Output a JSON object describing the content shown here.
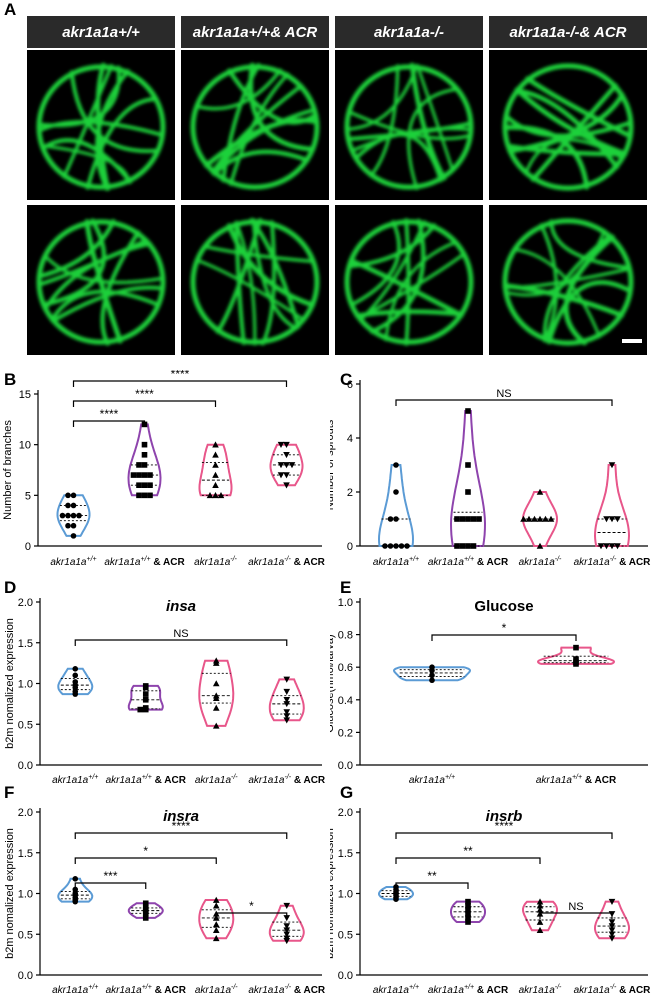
{
  "panel_letters": {
    "A": "A",
    "B": "B",
    "C": "C",
    "D": "D",
    "E": "E",
    "F": "F",
    "G": "G"
  },
  "panel_a": {
    "headers": [
      "akr1a1a+/+",
      "akr1a1a+/+& ACR",
      "akr1a1a-/-",
      "akr1a1a-/-& ACR"
    ],
    "image_color": "#1fd13a",
    "image_description_icon": "vessel-micrograph"
  },
  "colors": {
    "wt": "#5b9bd5",
    "wt_acr": "#8e44ad",
    "ko": "#e8568a",
    "ko_acr": "#e8568a"
  },
  "chart_data": [
    {
      "panel": "B",
      "type": "violin",
      "ylabel": "Number of branches",
      "ylim": [
        0,
        15
      ],
      "yticks": [
        0,
        5,
        10,
        15
      ],
      "categories": [
        "akr1a1a+/+",
        "akr1a1a+/+ & ACR",
        "akr1a1a-/-",
        "akr1a1a-/- & ACR"
      ],
      "series": [
        {
          "values": [
            5,
            5,
            4,
            4,
            3,
            3,
            3,
            3,
            2,
            2,
            1
          ],
          "color": "#5b9bd5"
        },
        {
          "values": [
            12,
            10,
            9,
            8,
            8,
            7,
            7,
            7,
            7,
            6,
            6,
            6,
            5,
            5,
            5
          ],
          "color": "#8e44ad"
        },
        {
          "values": [
            10,
            9,
            8,
            7,
            6,
            5,
            5,
            5
          ],
          "color": "#e8568a"
        },
        {
          "values": [
            10,
            10,
            9,
            8,
            8,
            8,
            7,
            7,
            6
          ],
          "color": "#e8568a"
        }
      ],
      "significance": [
        {
          "label": "****"
        },
        {
          "label": "****"
        },
        {
          "label": "****"
        }
      ]
    },
    {
      "panel": "C",
      "type": "violin",
      "ylabel": "Number of sprouts",
      "ylim": [
        0,
        6
      ],
      "yticks": [
        0,
        2,
        4,
        6
      ],
      "categories": [
        "akr1a1a+/+",
        "akr1a1a+/+ & ACR",
        "akr1a1a-/-",
        "akr1a1a-/- & ACR"
      ],
      "series": [
        {
          "values": [
            3,
            2,
            1,
            1,
            0,
            0,
            0,
            0,
            0
          ],
          "color": "#5b9bd5"
        },
        {
          "values": [
            5,
            3,
            2,
            1,
            1,
            1,
            1,
            1,
            0,
            0,
            0,
            0
          ],
          "color": "#8e44ad"
        },
        {
          "values": [
            2,
            1,
            1,
            1,
            1,
            1,
            1,
            0
          ],
          "color": "#e8568a"
        },
        {
          "values": [
            3,
            1,
            1,
            1,
            0,
            0,
            0,
            0
          ],
          "color": "#e8568a"
        }
      ],
      "significance": [
        {
          "label": "NS"
        }
      ]
    },
    {
      "panel": "D",
      "type": "violin",
      "title": "insa",
      "ylabel": "b2m nomalized expression",
      "ylim": [
        0,
        2.0
      ],
      "yticks": [
        "0.0",
        "0.5",
        "1.0",
        "1.5",
        "2.0"
      ],
      "categories": [
        "akr1a1a+/+",
        "akr1a1a+/+ & ACR",
        "akr1a1a-/-",
        "akr1a1a-/- & ACR"
      ],
      "series": [
        {
          "values": [
            1.18,
            1.1,
            1.02,
            0.98,
            0.95,
            0.9,
            0.87
          ],
          "color": "#5b9bd5"
        },
        {
          "values": [
            0.97,
            0.95,
            0.87,
            0.8,
            0.7,
            0.68,
            0.68
          ],
          "color": "#8e44ad"
        },
        {
          "values": [
            1.28,
            1.25,
            1.0,
            0.85,
            0.82,
            0.7,
            0.48
          ],
          "color": "#e8568a"
        },
        {
          "values": [
            1.05,
            0.9,
            0.8,
            0.75,
            0.65,
            0.6,
            0.55
          ],
          "color": "#e8568a"
        }
      ],
      "significance": [
        {
          "label": "NS"
        }
      ]
    },
    {
      "panel": "E",
      "type": "violin",
      "title": "Glucose",
      "ylabel": "Glucose(nmol/larva)",
      "ylim": [
        0,
        1.0
      ],
      "yticks": [
        "0.0",
        "0.2",
        "0.4",
        "0.6",
        "0.8",
        "1.0"
      ],
      "categories": [
        "akr1a1a+/+",
        "akr1a1a+/+ & ACR"
      ],
      "series": [
        {
          "values": [
            0.6,
            0.58,
            0.55,
            0.52
          ],
          "color": "#5b9bd5"
        },
        {
          "values": [
            0.72,
            0.65,
            0.63,
            0.62
          ],
          "color": "#e8568a"
        }
      ],
      "significance": [
        {
          "label": "*"
        }
      ]
    },
    {
      "panel": "F",
      "type": "violin",
      "title": "insra",
      "ylabel": "b2m nomalized expression",
      "ylim": [
        0,
        2.0
      ],
      "yticks": [
        "0.0",
        "0.5",
        "1.0",
        "1.5",
        "2.0"
      ],
      "categories": [
        "akr1a1a+/+",
        "akr1a1a+/+ & ACR",
        "akr1a1a-/-",
        "akr1a1a-/- & ACR"
      ],
      "series": [
        {
          "values": [
            1.18,
            1.05,
            1.0,
            0.98,
            0.95,
            0.92,
            0.9
          ],
          "color": "#5b9bd5"
        },
        {
          "values": [
            0.88,
            0.83,
            0.8,
            0.78,
            0.75,
            0.7
          ],
          "color": "#8e44ad"
        },
        {
          "values": [
            0.92,
            0.85,
            0.75,
            0.7,
            0.62,
            0.55,
            0.45
          ],
          "color": "#e8568a"
        },
        {
          "values": [
            0.85,
            0.7,
            0.6,
            0.55,
            0.5,
            0.45,
            0.42
          ],
          "color": "#e8568a"
        }
      ],
      "significance": [
        {
          "label": "****"
        },
        {
          "label": "*"
        },
        {
          "label": "***"
        },
        {
          "label": "*"
        }
      ]
    },
    {
      "panel": "G",
      "type": "violin",
      "title": "insrb",
      "ylabel": "b2m nomalized expression",
      "ylim": [
        0,
        2.0
      ],
      "yticks": [
        "0.0",
        "0.5",
        "1.0",
        "1.5",
        "2.0"
      ],
      "categories": [
        "akr1a1a+/+",
        "akr1a1a+/+ & ACR",
        "akr1a1a-/-",
        "akr1a1a-/- & ACR"
      ],
      "series": [
        {
          "values": [
            1.08,
            1.05,
            1.02,
            1.0,
            0.98,
            0.95,
            0.93
          ],
          "color": "#5b9bd5"
        },
        {
          "values": [
            0.9,
            0.85,
            0.8,
            0.75,
            0.7,
            0.65
          ],
          "color": "#8e44ad"
        },
        {
          "values": [
            0.9,
            0.85,
            0.8,
            0.75,
            0.65,
            0.55
          ],
          "color": "#e8568a"
        },
        {
          "values": [
            0.9,
            0.75,
            0.65,
            0.6,
            0.55,
            0.5,
            0.45
          ],
          "color": "#e8568a"
        }
      ],
      "significance": [
        {
          "label": "****"
        },
        {
          "label": "**"
        },
        {
          "label": "**"
        },
        {
          "label": "NS"
        }
      ]
    }
  ]
}
